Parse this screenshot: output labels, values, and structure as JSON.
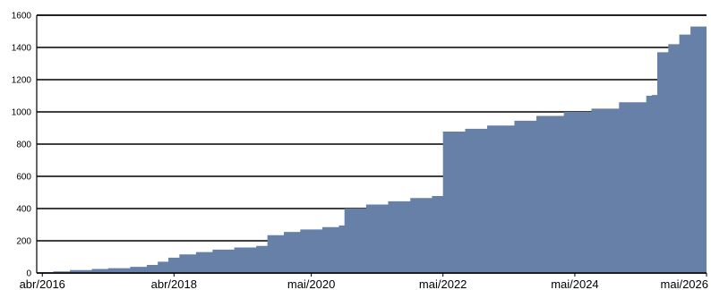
{
  "chart_data": {
    "type": "area",
    "title": "",
    "xlabel": "",
    "ylabel": "",
    "ylim": [
      0,
      1600
    ],
    "xlim": [
      "2016-03-01",
      "2026-05-01"
    ],
    "grid": true,
    "color": "#6680a8",
    "y_ticks": [
      0,
      200,
      400,
      600,
      800,
      1000,
      1200,
      1400,
      1600
    ],
    "y_tick_labels": [
      "0",
      "200",
      "400",
      "600",
      "800",
      "1000",
      "1200",
      "1400",
      "1600"
    ],
    "x_ticks": [
      {
        "label": "abr/2016",
        "date": "2016-04-01"
      },
      {
        "label": "abr/2018",
        "date": "2018-04-01"
      },
      {
        "label": "mai/2020",
        "date": "2020-05-01"
      },
      {
        "label": "mai/2022",
        "date": "2022-05-01"
      },
      {
        "label": "mai/2024",
        "date": "2024-05-01"
      },
      {
        "label": "mai/2026",
        "date": "2026-05-01"
      }
    ],
    "series": [
      {
        "points": [
          {
            "x": "2016-03-01",
            "y": 5
          },
          {
            "x": "2016-06-01",
            "y": 10
          },
          {
            "x": "2016-09-01",
            "y": 18
          },
          {
            "x": "2017-01-01",
            "y": 25
          },
          {
            "x": "2017-04-01",
            "y": 30
          },
          {
            "x": "2017-08-01",
            "y": 38
          },
          {
            "x": "2017-11-01",
            "y": 50
          },
          {
            "x": "2018-01-01",
            "y": 70
          },
          {
            "x": "2018-03-01",
            "y": 95
          },
          {
            "x": "2018-05-01",
            "y": 115
          },
          {
            "x": "2018-08-01",
            "y": 130
          },
          {
            "x": "2018-11-01",
            "y": 145
          },
          {
            "x": "2019-03-01",
            "y": 158
          },
          {
            "x": "2019-07-01",
            "y": 168
          },
          {
            "x": "2019-09-01",
            "y": 235
          },
          {
            "x": "2019-12-01",
            "y": 255
          },
          {
            "x": "2020-03-01",
            "y": 270
          },
          {
            "x": "2020-07-01",
            "y": 285
          },
          {
            "x": "2020-10-01",
            "y": 295
          },
          {
            "x": "2020-11-01",
            "y": 400
          },
          {
            "x": "2021-03-01",
            "y": 425
          },
          {
            "x": "2021-07-01",
            "y": 445
          },
          {
            "x": "2021-11-01",
            "y": 465
          },
          {
            "x": "2022-03-01",
            "y": 478
          },
          {
            "x": "2022-05-01",
            "y": 878
          },
          {
            "x": "2022-09-01",
            "y": 895
          },
          {
            "x": "2023-01-01",
            "y": 915
          },
          {
            "x": "2023-06-01",
            "y": 945
          },
          {
            "x": "2023-10-01",
            "y": 975
          },
          {
            "x": "2024-03-01",
            "y": 1000
          },
          {
            "x": "2024-08-01",
            "y": 1020
          },
          {
            "x": "2025-01-01",
            "y": 1060
          },
          {
            "x": "2025-06-01",
            "y": 1100
          },
          {
            "x": "2025-07-01",
            "y": 1105
          },
          {
            "x": "2025-08-01",
            "y": 1370
          },
          {
            "x": "2025-10-01",
            "y": 1420
          },
          {
            "x": "2025-12-01",
            "y": 1480
          },
          {
            "x": "2026-02-01",
            "y": 1530
          },
          {
            "x": "2026-05-01",
            "y": 1580
          }
        ]
      }
    ]
  }
}
